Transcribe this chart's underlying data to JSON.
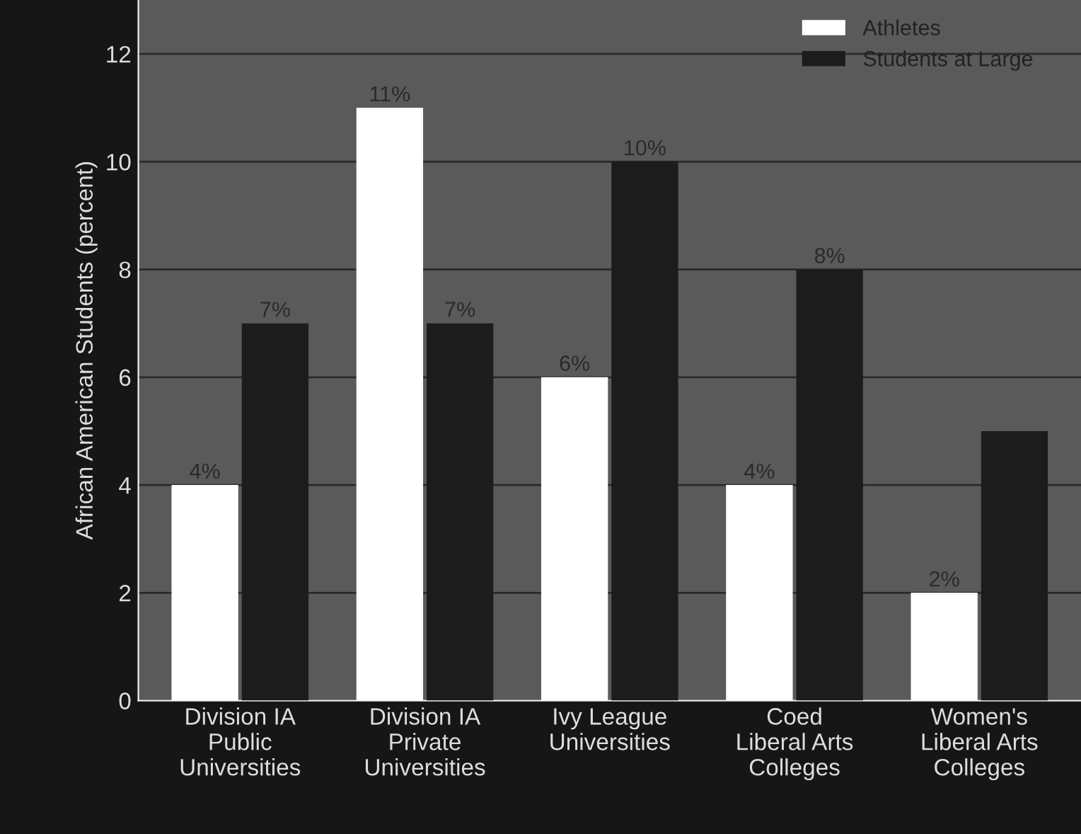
{
  "chart_data": {
    "type": "bar",
    "ylabel": "African American Students (percent)",
    "categories": [
      "Division IA\nPublic\nUniversities",
      "Division IA\nPrivate\nUniversities",
      "Ivy League\nUniversities",
      "Coed\nLiberal Arts\nColleges",
      "Women's\nLiberal Arts\nColleges"
    ],
    "series": [
      {
        "name": "Athletes",
        "color": "#ffffff",
        "values": [
          4,
          11,
          6,
          4,
          2
        ],
        "value_labels": [
          "4%",
          "11%",
          "6%",
          "4%",
          "2%"
        ]
      },
      {
        "name": "Students at Large",
        "color": "#1c1c1c",
        "values": [
          7,
          7,
          10,
          8,
          5
        ],
        "value_labels": [
          "7%",
          "7%",
          "10%",
          "8%",
          null
        ]
      }
    ],
    "ylim": [
      0,
      13
    ],
    "yticks": [
      0,
      2,
      4,
      6,
      8,
      10,
      12
    ],
    "grid": "y",
    "legend": "top right"
  }
}
